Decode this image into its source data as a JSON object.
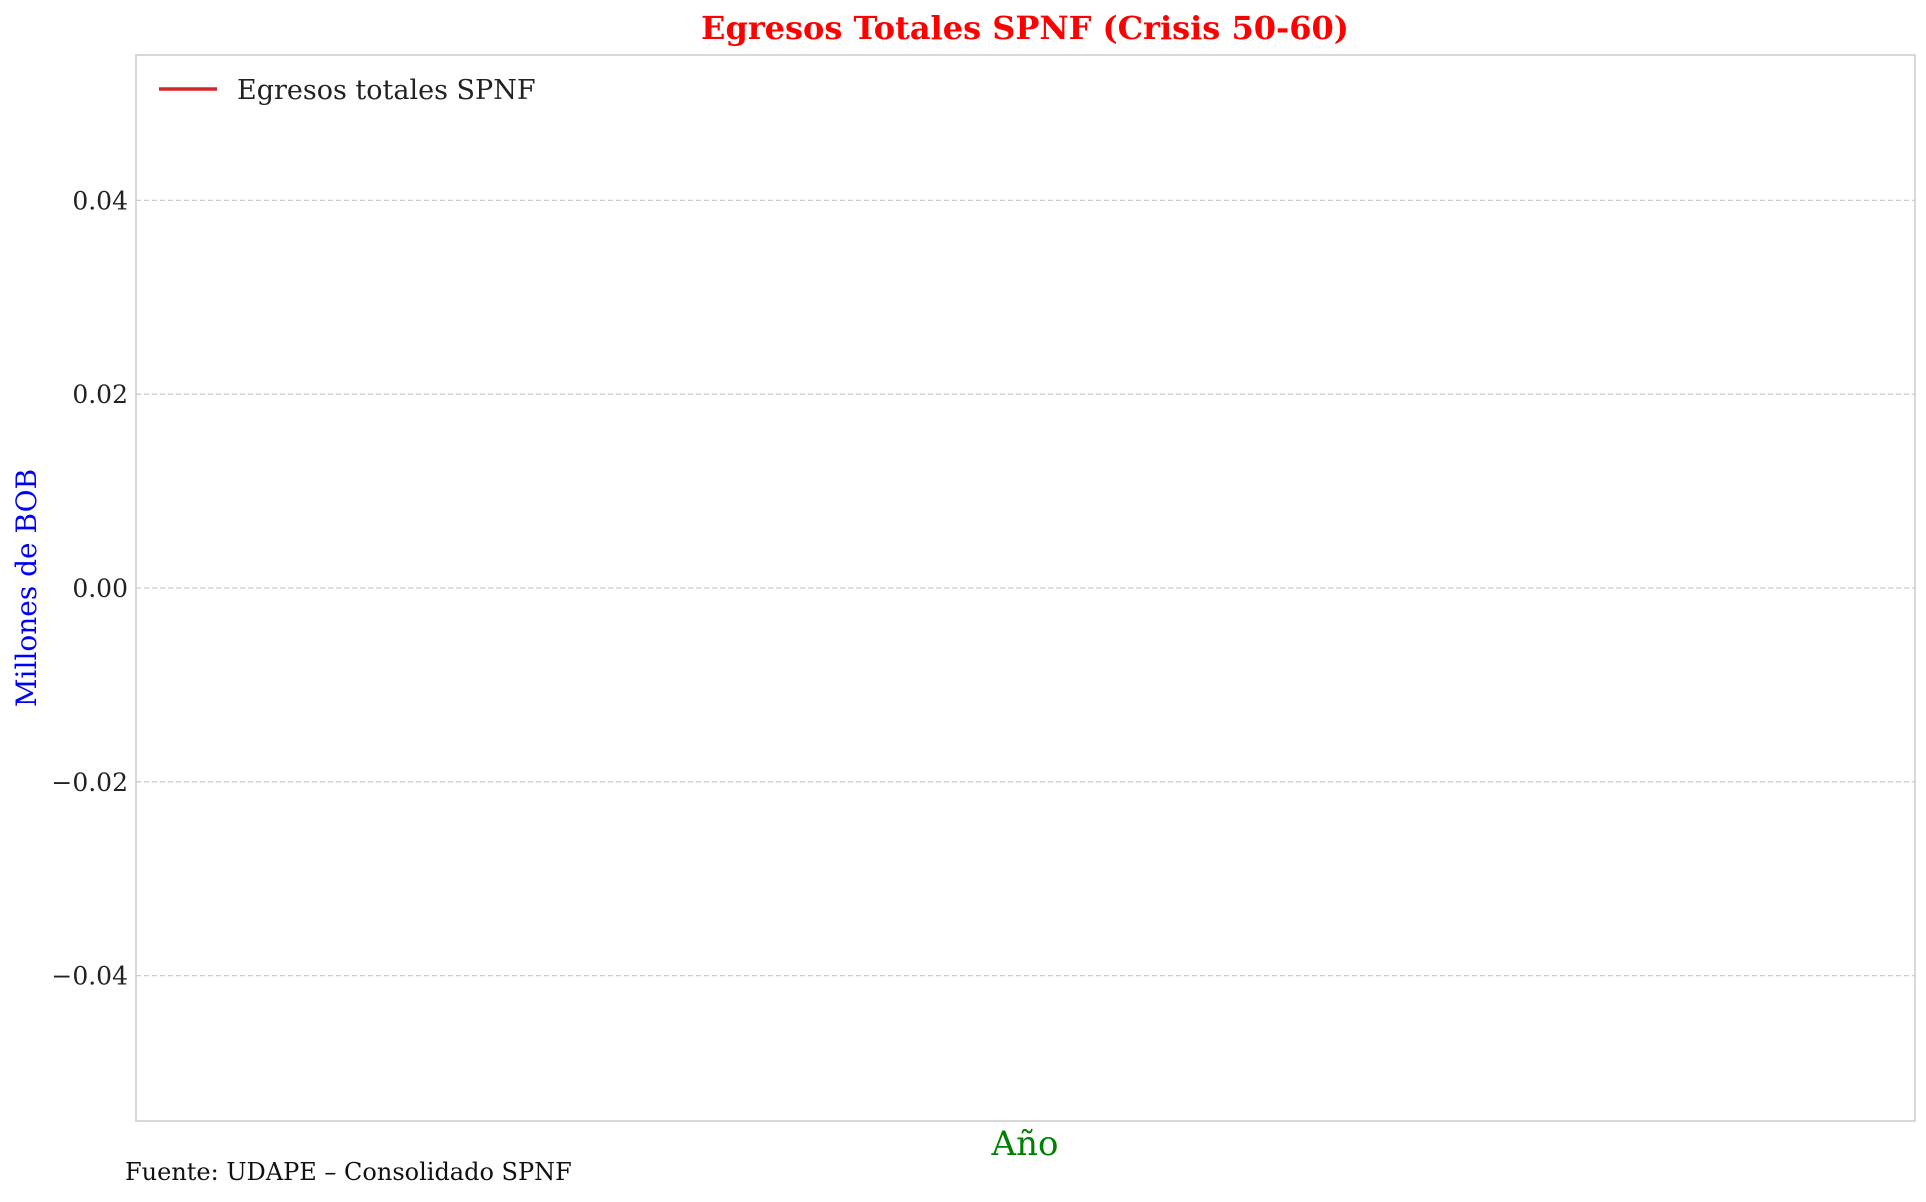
{
  "chart_data": {
    "type": "line",
    "title": "Egresos Totales SPNF (Crisis 50-60)",
    "xlabel": "Año",
    "ylabel": "Millones de BOB",
    "ylim": [
      -0.055,
      0.055
    ],
    "yticks": [
      0.04,
      0.02,
      0.0,
      -0.02,
      -0.04
    ],
    "ytick_labels": [
      "0.04",
      "0.02",
      "0.00",
      "−0.02",
      "−0.04"
    ],
    "grid": true,
    "legend": "top-left",
    "series": [
      {
        "name": "Egresos totales SPNF",
        "color": "#d62728",
        "x": [],
        "y": []
      }
    ],
    "source_note": "Fuente: UDAPE – Consolidado SPNF",
    "colors": {
      "title": "#ff0000",
      "xlabel": "#008000",
      "ylabel": "#0000ff",
      "grid": "#cccccc",
      "frame": "#cccccc",
      "text": "#222222"
    }
  }
}
